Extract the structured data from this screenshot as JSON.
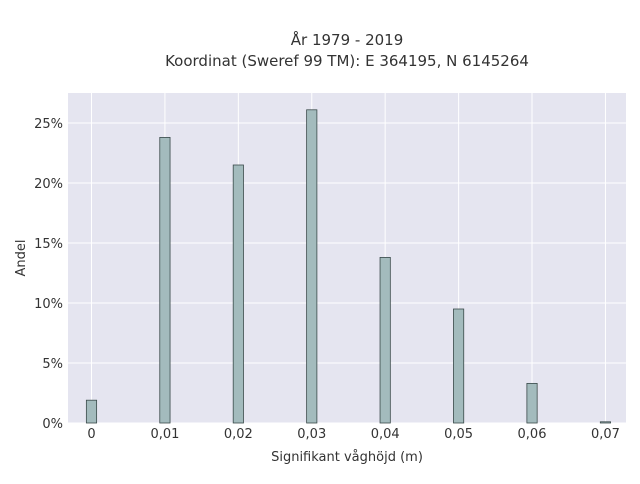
{
  "chart_data": {
    "type": "bar",
    "title": "År 1979 - 2019",
    "subtitle": "Koordinat (Sweref 99 TM): E 364195, N 6145264",
    "xlabel": "Signifikant våghöjd (m)",
    "ylabel": "Andel",
    "x_ticks": [
      "0",
      "0,01",
      "0,02",
      "0,03",
      "0,04",
      "0,05",
      "0,06",
      "0,07"
    ],
    "x_tick_values": [
      0,
      0.01,
      0.02,
      0.03,
      0.04,
      0.05,
      0.06,
      0.07
    ],
    "y_ticks": [
      "0%",
      "5%",
      "10%",
      "15%",
      "20%",
      "25%"
    ],
    "y_tick_values": [
      0,
      5,
      10,
      15,
      20,
      25
    ],
    "xlim": [
      -0.0032,
      0.0728
    ],
    "ylim": [
      0,
      27.5
    ],
    "grid": true,
    "legend": "none",
    "bar_width": 0.0014,
    "x": [
      0,
      0.01,
      0.02,
      0.03,
      0.04,
      0.05,
      0.06,
      0.07
    ],
    "values": [
      1.9,
      23.8,
      21.5,
      26.1,
      13.8,
      9.5,
      3.3,
      0.1
    ],
    "colors": {
      "bar_fill": "#a3bbbd",
      "bar_stroke": "#3a4a4a",
      "plot_bg": "#e5e5f0",
      "grid": "#ffffff",
      "text": "#333333"
    }
  }
}
